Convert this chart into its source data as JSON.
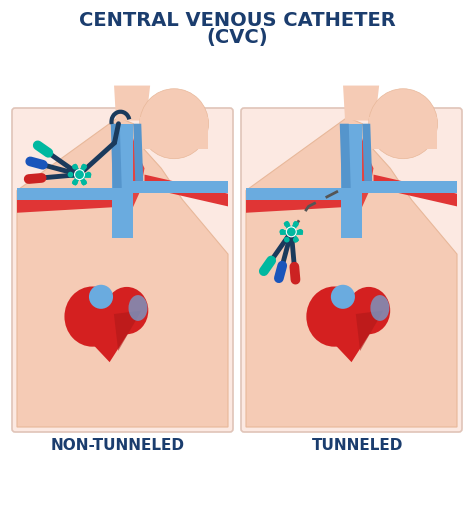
{
  "title_line1": "CENTRAL VENOUS CATHETER",
  "title_line2": "(CVC)",
  "title_color": "#1b3d6e",
  "title_fontsize": 14,
  "label_left": "NON-TUNNELED",
  "label_right": "TUNNELED",
  "label_fontsize": 11,
  "label_color": "#1b3d6e",
  "background": "#ffffff",
  "skin_color": "#f5cbb5",
  "skin_outline": "#e8b89a",
  "vein_blue": "#6aabdf",
  "vein_blue2": "#5595cc",
  "artery_red": "#e03535",
  "heart_red": "#d42020",
  "heart_dark": "#b01818",
  "catheter_teal": "#00b8a0",
  "catheter_dark": "#1a3a5c",
  "cap_blue": "#1a55bb",
  "cap_red": "#cc2222",
  "cap_teal": "#00b8a0",
  "box_bg": "#fce9e2",
  "box_border": "#e0c4b8"
}
